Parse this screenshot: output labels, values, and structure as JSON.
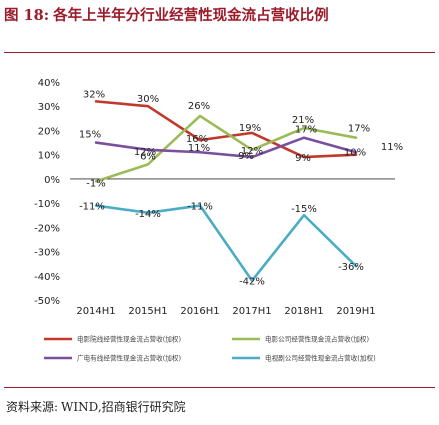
{
  "title": {
    "fig_label": "图 18:",
    "text": "各年上半年分行业经营性现金流占营收比例"
  },
  "source": {
    "label": "资料来源:",
    "text": "WIND,招商银行研究院"
  },
  "chart_data": {
    "type": "line",
    "categories": [
      "2014H1",
      "2015H1",
      "2016H1",
      "2017H1",
      "2018H1",
      "2019H1"
    ],
    "ylim": [
      -50,
      40
    ],
    "yticks": [
      -50,
      -40,
      -30,
      -20,
      -10,
      0,
      10,
      20,
      30,
      40
    ],
    "ytick_labels": [
      "-50%",
      "-40%",
      "-30%",
      "-20%",
      "-10%",
      "0%",
      "10%",
      "20%",
      "30%",
      "40%"
    ],
    "grid": false,
    "legend_position": "bottom",
    "series": [
      {
        "name": "电影院线经营性现金流占营收(加权)",
        "color": "#c0392b",
        "values": [
          32,
          30,
          16,
          19,
          9,
          10
        ],
        "labels": [
          "32%",
          "30%",
          "16%",
          "19%",
          "9%",
          "10%"
        ]
      },
      {
        "name": "电影公司经营性现金流占营收(加权)",
        "color": "#9bbb59",
        "values": [
          -1,
          6,
          26,
          12,
          21,
          17
        ],
        "labels": [
          "-1%",
          "6%",
          "26%",
          "12%",
          "21%",
          "17%"
        ]
      },
      {
        "name": "广电有线经营性现金流占营收(加权)",
        "color": "#7b4f9d",
        "values": [
          15,
          12,
          11,
          9,
          17,
          11
        ],
        "labels": [
          "15%",
          "12%",
          "11%",
          "9%",
          "17%",
          "11%"
        ]
      },
      {
        "name": "电视剧公司经营性现金流占营收(加权)",
        "color": "#4bacc6",
        "values": [
          -11,
          -14,
          -11,
          -42,
          -15,
          -36
        ],
        "labels": [
          "-11%",
          "-14%",
          "-11%",
          "-42%",
          "-15%",
          "-36%"
        ]
      }
    ]
  }
}
